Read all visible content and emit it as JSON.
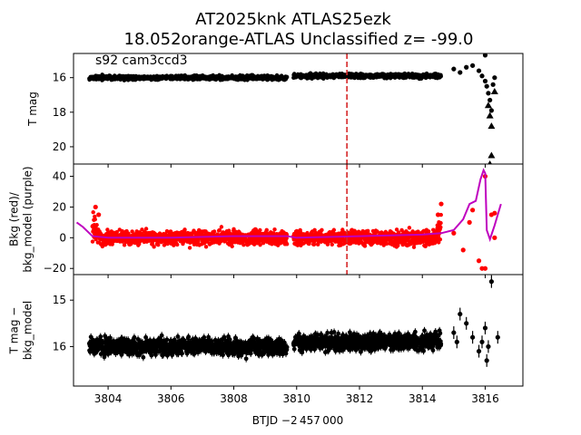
{
  "chart_data": {
    "title_line1": "AT2025knk  ATLAS25ezk",
    "title_line2": "18.052orange-ATLAS Unclassified z= -99.0",
    "annotation": "s92 cam3ccd3",
    "xlabel": "BTJD −2 457 000",
    "xlim": [
      3802.9,
      3817.2
    ],
    "xticks": [
      3804,
      3806,
      3808,
      3810,
      3812,
      3814,
      3816
    ],
    "xtick_labels": [
      "3804",
      "3806",
      "3808",
      "3810",
      "3812",
      "3814",
      "3816"
    ],
    "marker_line_x": 3811.6,
    "marker_line_color": "#d62728",
    "panels": [
      {
        "id": "tmag",
        "type": "scatter",
        "ylabel": [
          "T mag"
        ],
        "ylim": [
          21.0,
          14.6
        ],
        "yticks": [
          16,
          18,
          20
        ],
        "ytick_labels": [
          "16",
          "18",
          "20"
        ],
        "color": "#000000",
        "segments": [
          {
            "x0": 3803.4,
            "x1": 3809.7,
            "level": 16.0,
            "spread": 0.1
          },
          {
            "x0": 3809.9,
            "x1": 3814.6,
            "level": 15.9,
            "spread": 0.1
          }
        ],
        "tail_points": [
          {
            "x": 3815.0,
            "y": 15.5
          },
          {
            "x": 3815.2,
            "y": 15.7
          },
          {
            "x": 3815.4,
            "y": 15.4
          },
          {
            "x": 3815.6,
            "y": 15.3
          },
          {
            "x": 3815.8,
            "y": 15.6
          },
          {
            "x": 3815.9,
            "y": 15.9
          },
          {
            "x": 3816.0,
            "y": 14.7
          },
          {
            "x": 3816.0,
            "y": 16.2
          },
          {
            "x": 3816.05,
            "y": 16.5
          },
          {
            "x": 3816.1,
            "y": 16.9
          },
          {
            "x": 3816.15,
            "y": 17.3
          },
          {
            "x": 3816.2,
            "y": 17.9
          },
          {
            "x": 3816.25,
            "y": 16.4
          },
          {
            "x": 3816.3,
            "y": 16.0
          }
        ],
        "upper_limits": [
          {
            "x": 3816.1,
            "y": 17.6
          },
          {
            "x": 3816.15,
            "y": 18.2
          },
          {
            "x": 3816.2,
            "y": 18.8
          },
          {
            "x": 3816.3,
            "y": 16.8
          },
          {
            "x": 3816.2,
            "y": 20.5
          },
          {
            "x": 3816.15,
            "y": 21.0
          }
        ]
      },
      {
        "id": "bkg",
        "type": "scatter+line",
        "ylabel": [
          "Bkg (red)/",
          "bkg_model (purple)"
        ],
        "ylim": [
          -24,
          48
        ],
        "yticks": [
          -20,
          0,
          20,
          40
        ],
        "ytick_labels": [
          "−20",
          "0",
          "20",
          "40"
        ],
        "scatter_color": "#ff0000",
        "line_color": "#bf00bf",
        "segments": [
          {
            "x0": 3803.5,
            "x1": 3809.7,
            "level": 0,
            "spread": 4
          },
          {
            "x0": 3809.9,
            "x1": 3814.6,
            "level": 0,
            "spread": 4
          }
        ],
        "edge_bumps": [
          {
            "x": 3803.6,
            "y": 20
          },
          {
            "x": 3803.7,
            "y": 15
          },
          {
            "x": 3814.5,
            "y": 15
          },
          {
            "x": 3814.6,
            "y": 22
          }
        ],
        "tail_points": [
          {
            "x": 3815.0,
            "y": 3
          },
          {
            "x": 3815.3,
            "y": -8
          },
          {
            "x": 3815.5,
            "y": 10
          },
          {
            "x": 3815.6,
            "y": 18
          },
          {
            "x": 3815.8,
            "y": -15
          },
          {
            "x": 3815.9,
            "y": -20
          },
          {
            "x": 3816.0,
            "y": -20
          },
          {
            "x": 3816.0,
            "y": 40
          },
          {
            "x": 3816.2,
            "y": 15
          },
          {
            "x": 3816.3,
            "y": 16
          },
          {
            "x": 3816.3,
            "y": 0
          }
        ],
        "model_line": [
          {
            "x": 3803.0,
            "y": 10
          },
          {
            "x": 3803.2,
            "y": 7
          },
          {
            "x": 3803.5,
            "y": 1
          },
          {
            "x": 3804.0,
            "y": 0
          },
          {
            "x": 3806.0,
            "y": 0
          },
          {
            "x": 3808.0,
            "y": 1
          },
          {
            "x": 3809.7,
            "y": 1
          },
          {
            "x": 3810.0,
            "y": 0
          },
          {
            "x": 3812.0,
            "y": 1
          },
          {
            "x": 3814.0,
            "y": 2
          },
          {
            "x": 3814.6,
            "y": 3
          },
          {
            "x": 3815.0,
            "y": 5
          },
          {
            "x": 3815.3,
            "y": 12
          },
          {
            "x": 3815.5,
            "y": 22
          },
          {
            "x": 3815.7,
            "y": 24
          },
          {
            "x": 3815.85,
            "y": 38
          },
          {
            "x": 3815.95,
            "y": 44
          },
          {
            "x": 3816.0,
            "y": 42
          },
          {
            "x": 3816.05,
            "y": 5
          },
          {
            "x": 3816.15,
            "y": -1
          },
          {
            "x": 3816.3,
            "y": 8
          },
          {
            "x": 3816.5,
            "y": 22
          }
        ]
      },
      {
        "id": "diff",
        "type": "errorbar",
        "ylabel": [
          "T mag −",
          "bkg_model"
        ],
        "ylim": [
          16.85,
          14.45
        ],
        "yticks": [
          15,
          16
        ],
        "ytick_labels": [
          "15",
          "16"
        ],
        "color": "#000000",
        "segments": [
          {
            "x0": 3803.4,
            "x1": 3809.7,
            "level": 16.0,
            "spread": 0.15
          },
          {
            "x0": 3809.9,
            "x1": 3814.6,
            "level": 15.9,
            "spread": 0.15
          }
        ],
        "tail_points": [
          {
            "x": 3815.0,
            "y": 15.7
          },
          {
            "x": 3815.1,
            "y": 15.9
          },
          {
            "x": 3815.2,
            "y": 15.3
          },
          {
            "x": 3815.4,
            "y": 15.5
          },
          {
            "x": 3815.6,
            "y": 15.8
          },
          {
            "x": 3815.8,
            "y": 16.1
          },
          {
            "x": 3815.9,
            "y": 15.9
          },
          {
            "x": 3816.0,
            "y": 15.6
          },
          {
            "x": 3816.05,
            "y": 16.3
          },
          {
            "x": 3816.1,
            "y": 16.0
          },
          {
            "x": 3816.2,
            "y": 14.6
          },
          {
            "x": 3816.4,
            "y": 15.8
          }
        ]
      }
    ]
  }
}
